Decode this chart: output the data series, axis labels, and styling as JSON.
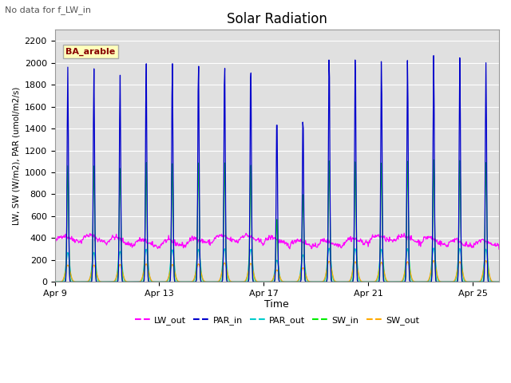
{
  "title": "Solar Radiation",
  "subtitle": "No data for f_LW_in",
  "ylabel": "LW, SW (W/m2), PAR (umol/m2/s)",
  "xlabel": "Time",
  "legend_label": "BA_arable",
  "ylim": [
    0,
    2300
  ],
  "yticks": [
    0,
    200,
    400,
    600,
    800,
    1000,
    1200,
    1400,
    1600,
    1800,
    2000,
    2200
  ],
  "bg_color": "#e0e0e0",
  "fig_color": "#ffffff",
  "line_colors": {
    "LW_out": "#ff00ff",
    "PAR_in": "#0000cc",
    "PAR_out": "#00cccc",
    "SW_in": "#00ee00",
    "SW_out": "#ffaa00"
  },
  "x_tick_labels": [
    "Apr 9",
    "Apr 13",
    "Apr 17",
    "Apr 21",
    "Apr 25"
  ],
  "x_tick_positions": [
    0,
    4,
    8,
    12,
    16
  ],
  "n_days": 17,
  "par_in_peaks": [
    1960,
    1950,
    1900,
    2020,
    2040,
    2040,
    2050,
    2040,
    1560,
    1560,
    2130,
    2100,
    2060,
    2050,
    2080,
    2050,
    2000
  ],
  "sw_in_peaks": [
    1060,
    1060,
    1040,
    1100,
    1095,
    1110,
    1120,
    1110,
    600,
    830,
    1140,
    1120,
    1100,
    1110,
    1120,
    1110,
    1090
  ],
  "par_out_peaks": [
    270,
    270,
    280,
    300,
    295,
    300,
    305,
    300,
    200,
    250,
    310,
    305,
    300,
    305,
    310,
    305,
    300
  ],
  "sw_out_peaks": [
    155,
    155,
    160,
    165,
    160,
    165,
    175,
    170,
    110,
    130,
    190,
    185,
    180,
    185,
    195,
    185,
    195
  ]
}
